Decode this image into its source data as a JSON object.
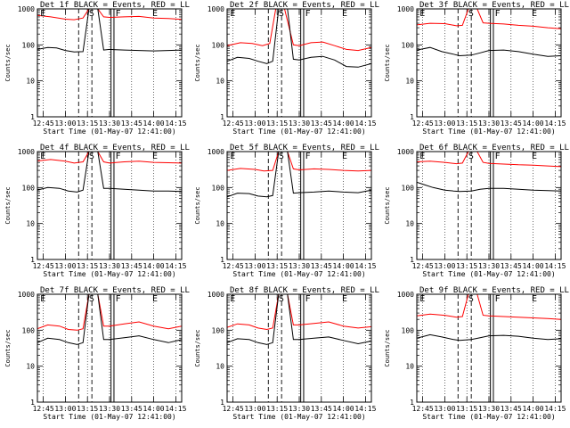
{
  "figure": {
    "time_ticks": [
      "12:45",
      "13:00",
      "13:15",
      "13:30",
      "13:45",
      "14:00",
      "14:15"
    ],
    "y_ticks": [
      "1",
      "10",
      "100",
      "1000"
    ],
    "ylabel": "Counts/sec",
    "xlabel": "Start Time (01-May-07 12:41:00)",
    "markers": {
      "E": "E",
      "S": "S",
      "F": "F"
    }
  },
  "chart_data": [
    {
      "type": "line",
      "title": "Det 1f BLACK = Events, RED = LLD",
      "xlabel": "Start Time (01-May-07 12:41:00)",
      "ylabel": "Counts/sec",
      "y_scale": "log",
      "ylim": [
        1,
        1000
      ],
      "xlim": [
        "12:41",
        "14:19"
      ],
      "x_ticks": [
        "12:45",
        "13:00",
        "13:15",
        "13:30",
        "13:45",
        "14:00",
        "14:15"
      ],
      "series": [
        {
          "name": "LLD",
          "color": "#ff0000",
          "x": [
            "12:41",
            "12:50",
            "13:00",
            "13:06",
            "13:12",
            "13:16",
            "13:22",
            "13:26",
            "13:30",
            "13:40",
            "13:50",
            "14:00",
            "14:10",
            "14:19"
          ],
          "values": [
            660,
            600,
            520,
            500,
            560,
            1000,
            1000,
            600,
            580,
            600,
            620,
            560,
            540,
            510
          ]
        },
        {
          "name": "Events",
          "color": "#000000",
          "x": [
            "12:41",
            "12:48",
            "12:54",
            "13:00",
            "13:06",
            "13:12",
            "13:16",
            "13:22",
            "13:26",
            "13:30",
            "13:40",
            "13:50",
            "14:00",
            "14:10",
            "14:19"
          ],
          "values": [
            75,
            85,
            82,
            70,
            64,
            65,
            1000,
            1000,
            72,
            75,
            72,
            70,
            68,
            70,
            72
          ]
        }
      ]
    },
    {
      "type": "line",
      "title": "Det 2f BLACK = Events, RED = LLD",
      "xlabel": "Start Time (01-May-07 12:41:00)",
      "ylabel": "Counts/sec",
      "y_scale": "log",
      "ylim": [
        1,
        1000
      ],
      "xlim": [
        "12:41",
        "14:19"
      ],
      "x_ticks": [
        "12:45",
        "13:00",
        "13:15",
        "13:30",
        "13:45",
        "14:00",
        "14:15"
      ],
      "series": [
        {
          "name": "LLD",
          "color": "#ff0000",
          "x": [
            "12:41",
            "12:50",
            "12:58",
            "13:05",
            "13:10",
            "13:14",
            "13:20",
            "13:26",
            "13:30",
            "13:38",
            "13:46",
            "13:54",
            "14:02",
            "14:10",
            "14:19"
          ],
          "values": [
            95,
            115,
            110,
            95,
            110,
            1000,
            1000,
            100,
            95,
            115,
            120,
            95,
            75,
            70,
            85
          ]
        },
        {
          "name": "Events",
          "color": "#000000",
          "x": [
            "12:41",
            "12:48",
            "12:56",
            "13:02",
            "13:08",
            "13:12",
            "13:16",
            "13:22",
            "13:26",
            "13:30",
            "13:38",
            "13:46",
            "13:54",
            "14:02",
            "14:10",
            "14:19"
          ],
          "values": [
            35,
            45,
            42,
            35,
            30,
            35,
            1000,
            1000,
            40,
            38,
            45,
            48,
            38,
            25,
            24,
            30
          ]
        }
      ]
    },
    {
      "type": "line",
      "title": "Det 3f BLACK = Events, RED = LLD",
      "xlabel": "Start Time (01-May-07 12:41:00)",
      "ylabel": "Counts/sec",
      "y_scale": "log",
      "ylim": [
        1,
        1000
      ],
      "xlim": [
        "12:41",
        "14:19"
      ],
      "x_ticks": [
        "12:45",
        "13:00",
        "13:15",
        "13:30",
        "13:45",
        "14:00",
        "14:15"
      ],
      "series": [
        {
          "name": "LLD",
          "color": "#ff0000",
          "x": [
            "12:41",
            "12:50",
            "13:00",
            "13:08",
            "13:12",
            "13:16",
            "13:22",
            "13:26",
            "13:30",
            "13:40",
            "13:50",
            "14:00",
            "14:10",
            "14:19"
          ],
          "values": [
            360,
            400,
            390,
            340,
            350,
            1000,
            1000,
            410,
            400,
            380,
            350,
            330,
            300,
            280
          ]
        },
        {
          "name": "Events",
          "color": "#000000",
          "x": [
            "12:41",
            "12:50",
            "12:58",
            "13:06",
            "13:10",
            "13:18",
            "13:24",
            "13:30",
            "13:40",
            "13:50",
            "14:00",
            "14:10",
            "14:19"
          ],
          "values": [
            72,
            85,
            65,
            55,
            50,
            52,
            60,
            70,
            72,
            65,
            55,
            48,
            50
          ]
        }
      ]
    },
    {
      "type": "line",
      "title": "Det 4f BLACK = Events, RED = LLD",
      "xlabel": "Start Time (01-May-07 12:41:00)",
      "ylabel": "Counts/sec",
      "y_scale": "log",
      "ylim": [
        1,
        1000
      ],
      "xlim": [
        "12:41",
        "14:19"
      ],
      "x_ticks": [
        "12:45",
        "13:00",
        "13:15",
        "13:30",
        "13:45",
        "14:00",
        "14:15"
      ],
      "series": [
        {
          "name": "LLD",
          "color": "#ff0000",
          "x": [
            "12:41",
            "12:50",
            "13:00",
            "13:06",
            "13:12",
            "13:16",
            "13:22",
            "13:26",
            "13:30",
            "13:40",
            "13:50",
            "14:00",
            "14:10",
            "14:19"
          ],
          "values": [
            550,
            600,
            540,
            480,
            520,
            1000,
            1000,
            520,
            480,
            520,
            540,
            500,
            490,
            480
          ]
        },
        {
          "name": "Events",
          "color": "#000000",
          "x": [
            "12:41",
            "12:48",
            "12:56",
            "13:02",
            "13:08",
            "13:12",
            "13:16",
            "13:22",
            "13:26",
            "13:30",
            "13:40",
            "13:50",
            "14:00",
            "14:10",
            "14:19"
          ],
          "values": [
            85,
            100,
            95,
            80,
            75,
            85,
            1000,
            1000,
            95,
            95,
            90,
            85,
            80,
            80,
            78
          ]
        }
      ]
    },
    {
      "type": "line",
      "title": "Det 5f BLACK = Events, RED = LLD",
      "xlabel": "Start Time (01-May-07 12:41:00)",
      "ylabel": "Counts/sec",
      "y_scale": "log",
      "ylim": [
        1,
        1000
      ],
      "xlim": [
        "12:41",
        "14:19"
      ],
      "x_ticks": [
        "12:45",
        "13:00",
        "13:15",
        "13:30",
        "13:45",
        "14:00",
        "14:15"
      ],
      "series": [
        {
          "name": "LLD",
          "color": "#ff0000",
          "x": [
            "12:41",
            "12:50",
            "13:00",
            "13:06",
            "13:12",
            "13:16",
            "13:22",
            "13:26",
            "13:30",
            "13:40",
            "13:50",
            "14:00",
            "14:10",
            "14:19"
          ],
          "values": [
            300,
            340,
            320,
            290,
            300,
            1000,
            1000,
            330,
            310,
            330,
            320,
            300,
            290,
            300
          ]
        },
        {
          "name": "Events",
          "color": "#000000",
          "x": [
            "12:41",
            "12:48",
            "12:56",
            "13:02",
            "13:08",
            "13:12",
            "13:16",
            "13:22",
            "13:26",
            "13:30",
            "13:40",
            "13:50",
            "14:00",
            "14:10",
            "14:19"
          ],
          "values": [
            55,
            70,
            68,
            58,
            55,
            60,
            1000,
            1000,
            70,
            72,
            75,
            80,
            75,
            72,
            85
          ]
        }
      ]
    },
    {
      "type": "line",
      "title": "Det 6f BLACK = Events, RED = LLD",
      "xlabel": "Start Time (01-May-07 12:41:00)",
      "ylabel": "Counts/sec",
      "y_scale": "log",
      "ylim": [
        1,
        1000
      ],
      "xlim": [
        "12:41",
        "14:19"
      ],
      "x_ticks": [
        "12:45",
        "13:00",
        "13:15",
        "13:30",
        "13:45",
        "14:00",
        "14:15"
      ],
      "series": [
        {
          "name": "LLD",
          "color": "#ff0000",
          "x": [
            "12:41",
            "12:50",
            "13:00",
            "13:08",
            "13:12",
            "13:16",
            "13:22",
            "13:26",
            "13:30",
            "13:40",
            "13:50",
            "14:00",
            "14:10",
            "14:19"
          ],
          "values": [
            520,
            540,
            500,
            460,
            480,
            1000,
            1000,
            500,
            470,
            450,
            430,
            420,
            400,
            380
          ]
        },
        {
          "name": "Events",
          "color": "#000000",
          "x": [
            "12:41",
            "12:46",
            "12:52",
            "13:00",
            "13:06",
            "13:10",
            "13:18",
            "13:24",
            "13:30",
            "13:40",
            "13:50",
            "14:00",
            "14:10",
            "14:19"
          ],
          "values": [
            140,
            120,
            100,
            85,
            80,
            78,
            80,
            90,
            95,
            95,
            90,
            85,
            82,
            80
          ]
        }
      ]
    },
    {
      "type": "line",
      "title": "Det 7f BLACK = Events, RED = LLD",
      "xlabel": "Start Time (01-May-07 12:41:00)",
      "ylabel": "Counts/sec",
      "y_scale": "log",
      "ylim": [
        1,
        1000
      ],
      "xlim": [
        "12:41",
        "14:19"
      ],
      "x_ticks": [
        "12:45",
        "13:00",
        "13:15",
        "13:30",
        "13:45",
        "14:00",
        "14:15"
      ],
      "series": [
        {
          "name": "LLD",
          "color": "#ff0000",
          "x": [
            "12:41",
            "12:48",
            "12:56",
            "13:02",
            "13:08",
            "13:12",
            "13:16",
            "13:22",
            "13:26",
            "13:30",
            "13:40",
            "13:50",
            "14:00",
            "14:10",
            "14:19"
          ],
          "values": [
            110,
            140,
            130,
            105,
            100,
            110,
            1000,
            1000,
            130,
            130,
            150,
            170,
            130,
            110,
            130
          ]
        },
        {
          "name": "Events",
          "color": "#000000",
          "x": [
            "12:41",
            "12:48",
            "12:56",
            "13:02",
            "13:08",
            "13:12",
            "13:16",
            "13:22",
            "13:26",
            "13:30",
            "13:40",
            "13:50",
            "14:00",
            "14:10",
            "14:19"
          ],
          "values": [
            45,
            60,
            55,
            45,
            40,
            45,
            1000,
            1000,
            55,
            55,
            62,
            70,
            55,
            45,
            55
          ]
        }
      ]
    },
    {
      "type": "line",
      "title": "Det 8f BLACK = Events, RED = LLD",
      "xlabel": "Start Time (01-May-07 12:41:00)",
      "ylabel": "Counts/sec",
      "y_scale": "log",
      "ylim": [
        1,
        1000
      ],
      "xlim": [
        "12:41",
        "14:19"
      ],
      "x_ticks": [
        "12:45",
        "13:00",
        "13:15",
        "13:30",
        "13:45",
        "14:00",
        "14:15"
      ],
      "series": [
        {
          "name": "LLD",
          "color": "#ff0000",
          "x": [
            "12:41",
            "12:48",
            "12:56",
            "13:02",
            "13:08",
            "13:12",
            "13:16",
            "13:22",
            "13:26",
            "13:30",
            "13:40",
            "13:50",
            "14:00",
            "14:10",
            "14:19"
          ],
          "values": [
            120,
            150,
            140,
            115,
            105,
            115,
            1000,
            1000,
            140,
            140,
            155,
            170,
            130,
            115,
            125
          ]
        },
        {
          "name": "Events",
          "color": "#000000",
          "x": [
            "12:41",
            "12:48",
            "12:56",
            "13:02",
            "13:08",
            "13:12",
            "13:16",
            "13:22",
            "13:26",
            "13:30",
            "13:40",
            "13:50",
            "14:00",
            "14:10",
            "14:19"
          ],
          "values": [
            45,
            58,
            55,
            45,
            40,
            45,
            1000,
            1000,
            55,
            55,
            60,
            65,
            52,
            42,
            50
          ]
        }
      ]
    },
    {
      "type": "line",
      "title": "Det 9f BLACK = Events, RED = LLD",
      "xlabel": "Start Time (01-May-07 12:41:00)",
      "ylabel": "Counts/sec",
      "y_scale": "log",
      "ylim": [
        1,
        1000
      ],
      "xlim": [
        "12:41",
        "14:19"
      ],
      "x_ticks": [
        "12:45",
        "13:00",
        "13:15",
        "13:30",
        "13:45",
        "14:00",
        "14:15"
      ],
      "series": [
        {
          "name": "LLD",
          "color": "#ff0000",
          "x": [
            "12:41",
            "12:50",
            "13:00",
            "13:08",
            "13:12",
            "13:16",
            "13:22",
            "13:26",
            "13:30",
            "13:40",
            "13:50",
            "14:00",
            "14:10",
            "14:19"
          ],
          "values": [
            250,
            280,
            260,
            230,
            240,
            1000,
            1000,
            260,
            250,
            240,
            230,
            220,
            210,
            200
          ]
        },
        {
          "name": "Events",
          "color": "#000000",
          "x": [
            "12:41",
            "12:50",
            "12:58",
            "13:06",
            "13:10",
            "13:18",
            "13:24",
            "13:30",
            "13:40",
            "13:50",
            "14:00",
            "14:10",
            "14:19"
          ],
          "values": [
            60,
            75,
            65,
            55,
            52,
            55,
            62,
            70,
            72,
            68,
            60,
            55,
            58
          ]
        }
      ]
    }
  ]
}
